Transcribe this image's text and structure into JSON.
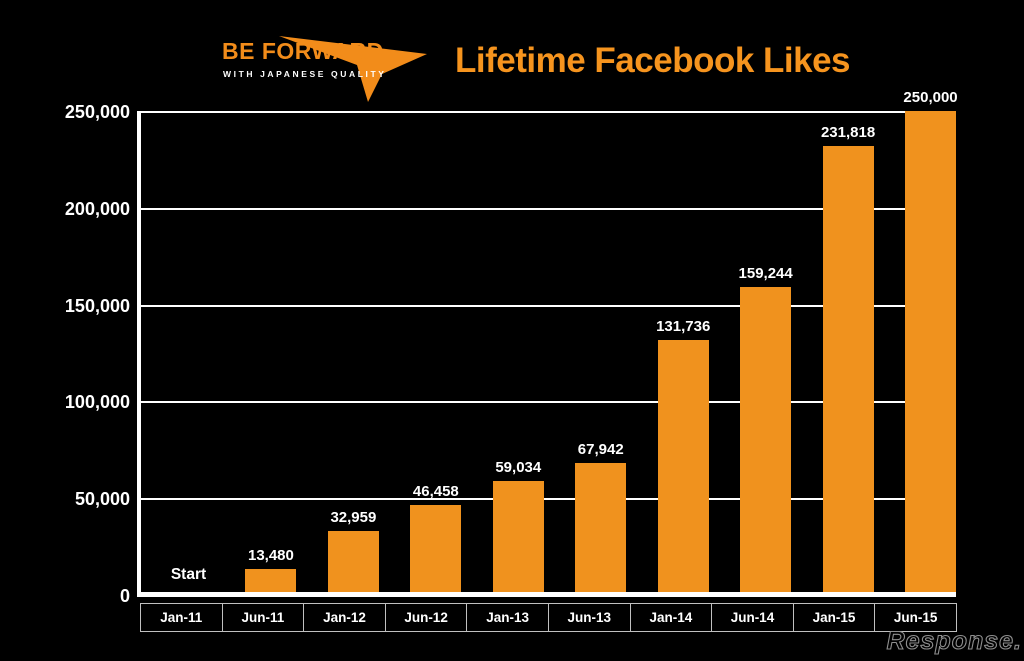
{
  "header": {
    "logo": {
      "name": "BE FORWARD",
      "tagline": "WITH JAPANESE QUALITY"
    },
    "title": "Lifetime Facebook Likes"
  },
  "watermark": "Response.",
  "colors": {
    "background": "#000000",
    "bar": "#F0921E",
    "title": "#F6941E",
    "logo_orange": "#F28C1A",
    "gridline": "#FFFFFF",
    "axis": "#FFFFFF",
    "label_text": "#FFFFFF",
    "table_border": "#C0C0C0",
    "watermark_outline": "#8E8E8E"
  },
  "chart_data": {
    "type": "bar",
    "title": "Lifetime Facebook Likes",
    "categories": [
      "Jan-11",
      "Jun-11",
      "Jan-12",
      "Jun-12",
      "Jan-13",
      "Jun-13",
      "Jan-14",
      "Jun-14",
      "Jan-15",
      "Jun-15"
    ],
    "values": [
      null,
      13480,
      32959,
      46458,
      59034,
      67942,
      131736,
      159244,
      231818,
      250000
    ],
    "bar_labels": [
      "Start",
      "13,480",
      "32,959",
      "46,458",
      "59,034",
      "67,942",
      "131,736",
      "159,244",
      "231,818",
      "250,000"
    ],
    "y_ticks": [
      "250,000",
      "200,000",
      "150,000",
      "100,000",
      "50,000",
      "0"
    ],
    "ylim": [
      0,
      250000
    ],
    "y_major_unit": 50000,
    "grid": true,
    "legend": false,
    "xlabel": "",
    "ylabel": "",
    "bar_color": "#F0921E",
    "notes": "First period labeled Start with no bar; final bar reaches axis maximum."
  }
}
